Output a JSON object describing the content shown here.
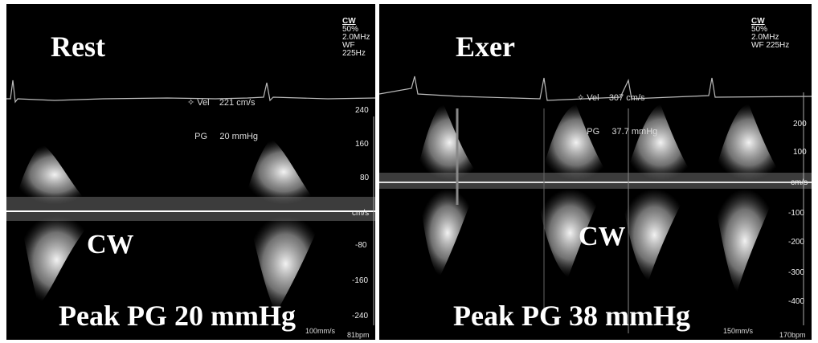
{
  "rest": {
    "title": "Rest",
    "mode": {
      "name": "CW",
      "power": "50%",
      "freq": "2.0MHz",
      "wf": "WF 225Hz"
    },
    "measurement": {
      "vel_label": "Vel",
      "vel_value": "221 cm/s",
      "pg_label": "PG",
      "pg_value": "20 mmHg"
    },
    "cw_label": "CW",
    "peak_label": "Peak PG 20 mmHg",
    "scale_ticks": [
      "240",
      "160",
      "80",
      "cm/s",
      "-80",
      "-160",
      "-240"
    ],
    "sweep_speed": "100mm/s",
    "heart_rate": "81bpm"
  },
  "exer": {
    "title": "Exer",
    "mode": {
      "name": "CW",
      "power": "50%",
      "freq": "2.0MHz",
      "wf": "WF 225Hz"
    },
    "measurement": {
      "vel_label": "Vel",
      "vel_value": "307 cm/s",
      "pg_label": "PG",
      "pg_value": "37.7 mmHg"
    },
    "cw_label": "CW",
    "peak_label": "Peak PG 38 mmHg",
    "scale_ticks": [
      "200",
      "100",
      "cm/s",
      "-100",
      "-200",
      "-300",
      "-400"
    ],
    "sweep_speed": "150mm/s",
    "heart_rate": "170bpm"
  },
  "colors": {
    "background": "#000000",
    "spectrum": "#ffffff",
    "divider": "#ffffff"
  }
}
